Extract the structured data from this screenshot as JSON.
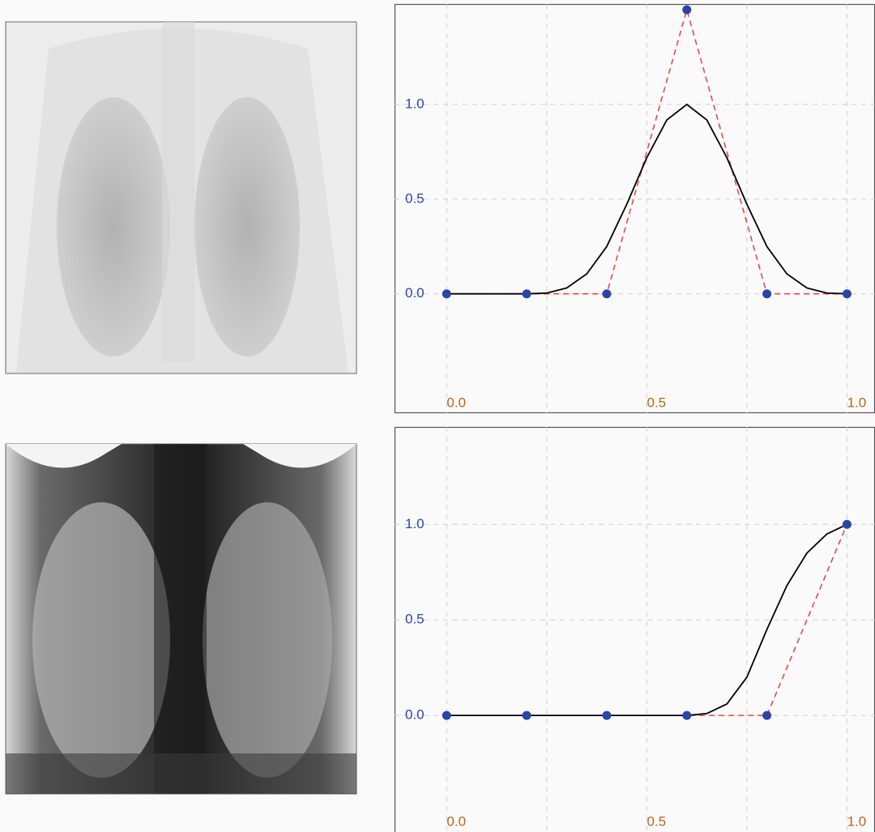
{
  "chart_data": [
    {
      "type": "line",
      "xlim": [
        -0.13,
        1.07
      ],
      "ylim": [
        -0.63,
        1.53
      ],
      "xticks": [
        {
          "value": 0,
          "label": "0.0"
        },
        {
          "value": 0.5,
          "label": "0.5"
        },
        {
          "value": 1,
          "label": "1.0"
        }
      ],
      "xgrid": [
        0,
        0.25,
        0.5,
        0.75,
        1
      ],
      "yticks": [
        {
          "value": 0,
          "label": "0.0"
        },
        {
          "value": 0.5,
          "label": "0.5"
        },
        {
          "value": 1,
          "label": "1.0"
        }
      ],
      "grid": true,
      "control_points": {
        "color": "#2a45a8",
        "line_color": "#f04545",
        "x": [
          0,
          0.2,
          0.4,
          0.6,
          0.8,
          1.0
        ],
        "values": [
          0,
          0,
          0,
          1.5,
          0,
          0
        ]
      },
      "curve": {
        "color": "#000000",
        "x": [
          0,
          0.2,
          0.25,
          0.3,
          0.35,
          0.4,
          0.45,
          0.5,
          0.55,
          0.6,
          0.65,
          0.7,
          0.75,
          0.8,
          0.85,
          0.9,
          0.95,
          1.0
        ],
        "values": [
          0,
          0,
          0.004,
          0.031,
          0.105,
          0.25,
          0.473,
          0.719,
          0.918,
          1.0,
          0.918,
          0.719,
          0.473,
          0.25,
          0.105,
          0.031,
          0.004,
          0
        ]
      }
    },
    {
      "type": "line",
      "xlim": [
        -0.13,
        1.07
      ],
      "ylim": [
        -0.61,
        1.51
      ],
      "xticks": [
        {
          "value": 0,
          "label": "0.0"
        },
        {
          "value": 0.5,
          "label": "0.5"
        },
        {
          "value": 1,
          "label": "1.0"
        }
      ],
      "xgrid": [
        0,
        0.25,
        0.5,
        0.75,
        1
      ],
      "yticks": [
        {
          "value": 0,
          "label": "0.0"
        },
        {
          "value": 0.5,
          "label": "0.5"
        },
        {
          "value": 1,
          "label": "1.0"
        }
      ],
      "grid": true,
      "control_points": {
        "color": "#2a45a8",
        "line_color": "#f04545",
        "x": [
          0,
          0.2,
          0.4,
          0.6,
          0.8,
          1.0
        ],
        "values": [
          0,
          0,
          0,
          0,
          0,
          1.0
        ]
      },
      "curve": {
        "color": "#000000",
        "x": [
          0,
          0.6,
          0.65,
          0.7,
          0.75,
          0.8,
          0.85,
          0.9,
          0.95,
          1.0
        ],
        "values": [
          0,
          0,
          0.01,
          0.06,
          0.2,
          0.45,
          0.68,
          0.85,
          0.95,
          1.0
        ]
      }
    }
  ]
}
